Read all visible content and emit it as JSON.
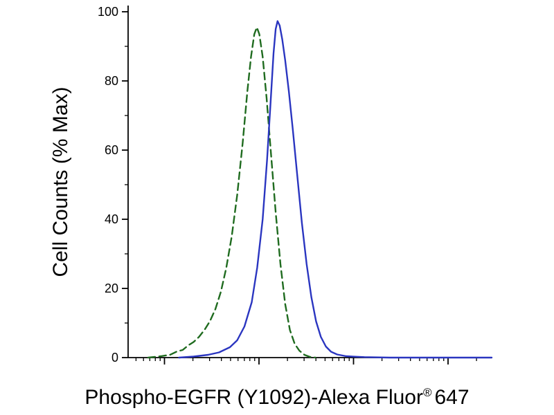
{
  "page": {
    "background": "#ffffff"
  },
  "chart_data": {
    "type": "line",
    "chart_kind": "flow-cytometry-overlay-histogram",
    "title": "",
    "ylabel": "Cell Counts (% Max)",
    "xlabel": {
      "main": "Phospho-EGFR (Y1092)-Alexa Fluor",
      "registered_mark": "®",
      "suffix": "647"
    },
    "ylim": [
      0,
      100
    ],
    "yticks": [
      0,
      20,
      40,
      60,
      80,
      100
    ],
    "y_minor_ticks": [
      10,
      30,
      50,
      70,
      90
    ],
    "x_axis": {
      "scale": "log",
      "tick_labels_visible": false,
      "decade_fractions": [
        0.1,
        0.36,
        0.62,
        0.88
      ]
    },
    "axis_color": "#000000",
    "grid": false,
    "legend": "none",
    "series": [
      {
        "name": "dashed-green-curve",
        "color": "#1f6b1f",
        "style": "dashed",
        "peak_value": 95.5,
        "points": [
          [
            0.055,
            0
          ],
          [
            0.09,
            0.4
          ],
          [
            0.115,
            0.8
          ],
          [
            0.135,
            1.8
          ],
          [
            0.15,
            2.2
          ],
          [
            0.165,
            3.5
          ],
          [
            0.18,
            4.5
          ],
          [
            0.195,
            6
          ],
          [
            0.21,
            8
          ],
          [
            0.225,
            10.5
          ],
          [
            0.24,
            14
          ],
          [
            0.255,
            19
          ],
          [
            0.27,
            26
          ],
          [
            0.285,
            35
          ],
          [
            0.3,
            47
          ],
          [
            0.315,
            62
          ],
          [
            0.328,
            77
          ],
          [
            0.338,
            87
          ],
          [
            0.347,
            93.5
          ],
          [
            0.354,
            95.5
          ],
          [
            0.361,
            93.5
          ],
          [
            0.37,
            87
          ],
          [
            0.381,
            75
          ],
          [
            0.393,
            59
          ],
          [
            0.406,
            42
          ],
          [
            0.419,
            27
          ],
          [
            0.432,
            15.5
          ],
          [
            0.445,
            8
          ],
          [
            0.458,
            4
          ],
          [
            0.471,
            2
          ],
          [
            0.485,
            0.8
          ],
          [
            0.5,
            0.2
          ],
          [
            0.515,
            0
          ]
        ]
      },
      {
        "name": "solid-blue-curve",
        "color": "#2a35c0",
        "style": "solid",
        "peak_value": 97.3,
        "points": [
          [
            0.14,
            0
          ],
          [
            0.18,
            0.3
          ],
          [
            0.22,
            0.8
          ],
          [
            0.25,
            1.5
          ],
          [
            0.28,
            3
          ],
          [
            0.3,
            5
          ],
          [
            0.32,
            9
          ],
          [
            0.34,
            16
          ],
          [
            0.355,
            26
          ],
          [
            0.37,
            40
          ],
          [
            0.382,
            57
          ],
          [
            0.392,
            74
          ],
          [
            0.4,
            88
          ],
          [
            0.406,
            95
          ],
          [
            0.411,
            97.3
          ],
          [
            0.417,
            96
          ],
          [
            0.424,
            92
          ],
          [
            0.432,
            86
          ],
          [
            0.442,
            77
          ],
          [
            0.453,
            66
          ],
          [
            0.465,
            53
          ],
          [
            0.478,
            39
          ],
          [
            0.491,
            27
          ],
          [
            0.504,
            17.5
          ],
          [
            0.517,
            10.5
          ],
          [
            0.53,
            6
          ],
          [
            0.544,
            3.2
          ],
          [
            0.558,
            1.7
          ],
          [
            0.575,
            0.9
          ],
          [
            0.6,
            0.4
          ],
          [
            0.65,
            0.15
          ],
          [
            0.72,
            0
          ],
          [
            1.0,
            0
          ]
        ]
      }
    ]
  }
}
